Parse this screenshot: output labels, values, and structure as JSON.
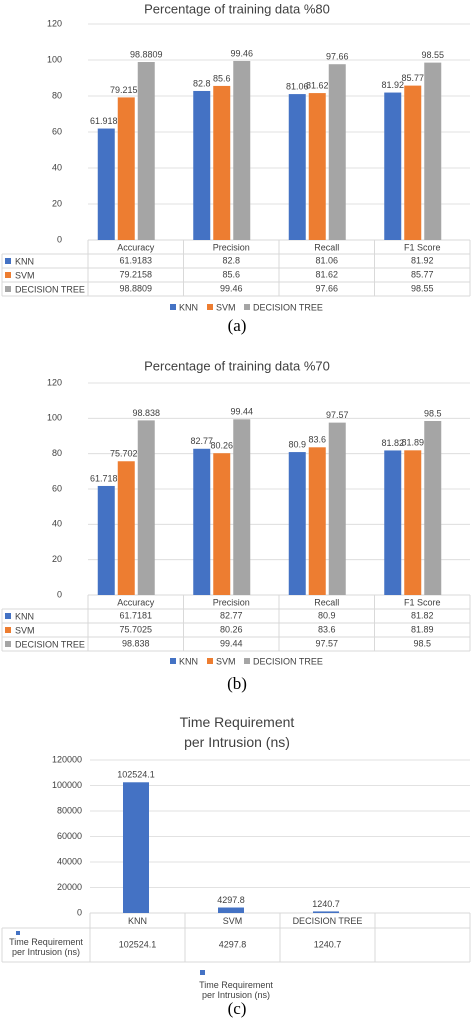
{
  "chart_data": [
    {
      "type": "bar",
      "title": "Percentage of training data %80",
      "caption": "(a)",
      "categories": [
        "Accuracy",
        "Precision",
        "Recall",
        "F1 Score"
      ],
      "series": [
        {
          "name": "KNN",
          "color": "#4472c4",
          "values": [
            61.9183,
            82.8,
            81.06,
            81.92
          ]
        },
        {
          "name": "SVM",
          "color": "#ed7d31",
          "values": [
            79.2158,
            85.6,
            81.62,
            85.77
          ]
        },
        {
          "name": "DECISION TREE",
          "color": "#a5a5a5",
          "values": [
            98.8809,
            99.46,
            97.66,
            98.55
          ]
        }
      ],
      "ylim": [
        0,
        120
      ],
      "yticks": [
        0,
        20,
        40,
        60,
        80,
        100,
        120
      ],
      "grid": true
    },
    {
      "type": "bar",
      "title": "Percentage of training data %70",
      "caption": "(b)",
      "categories": [
        "Accuracy",
        "Precision",
        "Recall",
        "F1 Score"
      ],
      "series": [
        {
          "name": "KNN",
          "color": "#4472c4",
          "values": [
            61.7181,
            82.77,
            80.9,
            81.82
          ]
        },
        {
          "name": "SVM",
          "color": "#ed7d31",
          "values": [
            75.7025,
            80.26,
            83.6,
            81.89
          ]
        },
        {
          "name": "DECISION TREE",
          "color": "#a5a5a5",
          "values": [
            98.838,
            99.44,
            97.57,
            98.5
          ]
        }
      ],
      "ylim": [
        0,
        120
      ],
      "yticks": [
        0,
        20,
        40,
        60,
        80,
        100,
        120
      ],
      "grid": true
    },
    {
      "type": "bar",
      "title": "Time Requirement per Intrusion (ns)",
      "caption": "(c)",
      "categories": [
        "KNN",
        "SVM",
        "DECISION TREE"
      ],
      "series": [
        {
          "name": "Time Requirement per Intrusion (ns)",
          "color": "#4472c4",
          "values": [
            102524.1,
            4297.8,
            1240.7
          ]
        }
      ],
      "ylim": [
        0,
        120000
      ],
      "yticks": [
        0,
        20000,
        40000,
        60000,
        80000,
        100000,
        120000
      ],
      "grid": true
    }
  ]
}
